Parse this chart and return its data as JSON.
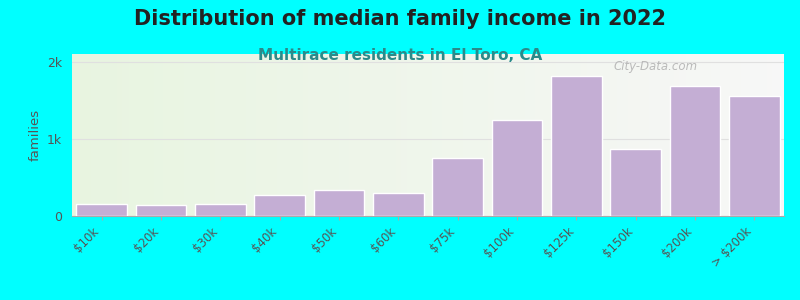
{
  "title": "Distribution of median family income in 2022",
  "subtitle": "Multirace residents in El Toro, CA",
  "ylabel": "families",
  "background_color": "#00FFFF",
  "bar_color": "#c4aed4",
  "bar_edge_color": "#ffffff",
  "categories": [
    "$10k",
    "$20k",
    "$30k",
    "$40k",
    "$50k",
    "$60k",
    "$75k",
    "$100k",
    "$125k",
    "$150k",
    "$200k",
    "> $200k"
  ],
  "values": [
    150,
    140,
    155,
    270,
    340,
    300,
    750,
    1250,
    1820,
    870,
    1680,
    1550
  ],
  "ylim": [
    0,
    2100
  ],
  "yticks": [
    0,
    1000,
    2000
  ],
  "ytick_labels": [
    "0",
    "1k",
    "2k"
  ],
  "title_fontsize": 15,
  "subtitle_fontsize": 11,
  "subtitle_color": "#2a8a8a",
  "watermark_text": "City-Data.com",
  "grid_color": "#e0e0e0"
}
